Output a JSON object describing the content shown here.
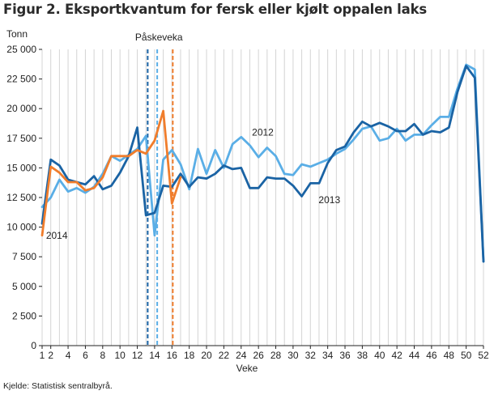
{
  "title": "Figur 2. Eksportkvantum for fersk eller kjølt oppalen laks",
  "source": "Kjelde: Statistisk sentralbyrå.",
  "chart_data": {
    "type": "line",
    "title": "Figur 2. Eksportkvantum for fersk eller kjølt oppalen laks",
    "ylabel": "Tonn",
    "xlabel": "Veke",
    "ylim": [
      0,
      25000
    ],
    "xlim": [
      1,
      52
    ],
    "yticks": [
      0,
      2500,
      5000,
      7500,
      10000,
      12500,
      15000,
      17500,
      20000,
      22500,
      25000
    ],
    "ytick_labels": [
      "0",
      "2 500",
      "5 000",
      "7 500",
      "10 000",
      "12 500",
      "15 000",
      "17 500",
      "20 000",
      "22 500",
      "25 000"
    ],
    "xticks": [
      1,
      2,
      4,
      6,
      8,
      10,
      12,
      14,
      16,
      18,
      20,
      22,
      24,
      26,
      28,
      30,
      32,
      34,
      36,
      38,
      40,
      42,
      44,
      46,
      48,
      50,
      52
    ],
    "grid": "vertical",
    "annotations": [
      {
        "text": "Påskeveka",
        "x": 14.5
      },
      {
        "text": "2012",
        "x": 26.5,
        "y": 18000
      },
      {
        "text": "2013",
        "x": 34.2,
        "y": 12300
      },
      {
        "text": "2014",
        "x": 2.7,
        "y": 9300
      }
    ],
    "markers": [
      {
        "x": 13.2,
        "color": "#1a63a4"
      },
      {
        "x": 14.3,
        "color": "#5aaee6"
      },
      {
        "x": 16.1,
        "color": "#f07d2c"
      }
    ],
    "series": [
      {
        "name": "2012",
        "color": "#5aaee6",
        "x": [
          1,
          2,
          3,
          4,
          5,
          6,
          7,
          8,
          9,
          10,
          11,
          12,
          13,
          14,
          15,
          16,
          17,
          18,
          19,
          20,
          21,
          22,
          23,
          24,
          25,
          26,
          27,
          28,
          29,
          30,
          31,
          32,
          33,
          34,
          35,
          36,
          37,
          38,
          39,
          40,
          41,
          42,
          43,
          44,
          45,
          46,
          47,
          48,
          49,
          50,
          51,
          52
        ],
        "values": [
          11700,
          12500,
          14000,
          13000,
          13300,
          12900,
          13400,
          14500,
          16000,
          15600,
          16100,
          16600,
          17700,
          9300,
          15700,
          16500,
          15300,
          13200,
          16600,
          14500,
          16500,
          15000,
          17000,
          17600,
          16900,
          15900,
          16700,
          16000,
          14500,
          14400,
          15300,
          15100,
          15400,
          15700,
          16200,
          16600,
          17400,
          18300,
          18500,
          17300,
          17500,
          18300,
          17300,
          17800,
          17800,
          18600,
          19300,
          19300,
          21700,
          23700,
          23300,
          7100
        ]
      },
      {
        "name": "2013",
        "color": "#1a63a4",
        "x": [
          1,
          2,
          3,
          4,
          5,
          6,
          7,
          8,
          9,
          10,
          11,
          12,
          13,
          14,
          15,
          16,
          17,
          18,
          19,
          20,
          21,
          22,
          23,
          24,
          25,
          26,
          27,
          28,
          29,
          30,
          31,
          32,
          33,
          34,
          35,
          36,
          37,
          38,
          39,
          40,
          41,
          42,
          43,
          44,
          45,
          46,
          47,
          48,
          49,
          50,
          51,
          52
        ],
        "values": [
          10300,
          15700,
          15200,
          14000,
          13800,
          13600,
          14300,
          13200,
          13500,
          14600,
          16000,
          18400,
          11000,
          11200,
          13500,
          13400,
          14500,
          13400,
          14200,
          14100,
          14500,
          15200,
          14900,
          15000,
          13300,
          13300,
          14200,
          14100,
          14100,
          13500,
          12600,
          13700,
          13700,
          15400,
          16500,
          16800,
          18000,
          18900,
          18500,
          18800,
          18500,
          18100,
          18100,
          18700,
          17800,
          18100,
          18000,
          18400,
          21400,
          23600,
          22600,
          7100
        ]
      },
      {
        "name": "2014",
        "color": "#f07d2c",
        "x": [
          1,
          2,
          3,
          4,
          5,
          6,
          7,
          8,
          9,
          10,
          11,
          12,
          13,
          14,
          15,
          16,
          17
        ],
        "values": [
          9300,
          15100,
          14600,
          13800,
          13800,
          13100,
          13300,
          14200,
          16000,
          16000,
          16000,
          16500,
          16200,
          17300,
          19800,
          12000,
          14200
        ]
      }
    ]
  }
}
